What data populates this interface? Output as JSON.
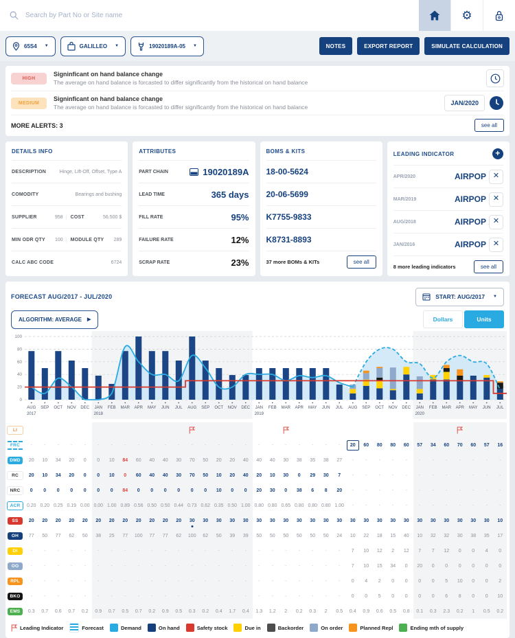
{
  "topbar": {
    "search_placeholder": "Search by Part No or Site name"
  },
  "toolbar": {
    "site": "65S4",
    "vendor": "GALILLEO",
    "part": "19020189A-05",
    "notes": "NOTES",
    "export_report": "EXPORT REPORT",
    "simulate": "SIMULATE CALCULATION"
  },
  "alerts": {
    "items": [
      {
        "severity": "HIGH",
        "title": "Signinficant on hand balance change",
        "description": "The average on hand balance is forcasted to differ significantly from the historical on hand balance"
      },
      {
        "severity": "MEDIUM",
        "title": "Signinficant on hand balance change",
        "description": "The average on hand balance is forcasted to differ significantly from the historical on hand balance",
        "date": "JAN/2020"
      }
    ],
    "more": "MORE ALERTS: 3",
    "see_all": "see all"
  },
  "details_info": {
    "title": "DETAILS INFO",
    "description_label": "DESCRIPTION",
    "description": "Hinge, Lift-Off, Offset, Type A",
    "comodity_label": "COMODITY",
    "comodity": "Bearings and bushing",
    "supplier_label": "SUPPLIER",
    "supplier": "958",
    "cost_label": "COST",
    "cost": "56.500 $",
    "min_odr_label": "MIN ODR QTY",
    "min_odr": "100",
    "module_label": "MODULE QTY",
    "module": "289",
    "abc_label": "CALC ABC CODE",
    "abc": "6724"
  },
  "attributes": {
    "title": "ATTRIBUTES",
    "rows": [
      {
        "label": "PART CHAIN",
        "value": "19020189A",
        "style": "blue",
        "icon": "part-chain"
      },
      {
        "label": "LEAD TIME",
        "value": "365 days",
        "style": "blue"
      },
      {
        "label": "FILL RATE",
        "value": "95%",
        "style": "blue"
      },
      {
        "label": "FAILURE RATE",
        "value": "12%",
        "style": "dark"
      },
      {
        "label": "SCRAP RATE",
        "value": "23%",
        "style": "dark"
      }
    ]
  },
  "boms": {
    "title": "BOMS & KITS",
    "items": [
      "18-00-5624",
      "20-06-5699",
      "K7755-9833",
      "K8731-8893"
    ],
    "more": "37 more BOMs & KITs",
    "see_all": "see all"
  },
  "leading": {
    "title": "LEADING INDICATOR",
    "items": [
      {
        "date": "APR/2020",
        "name": "AIRPOP"
      },
      {
        "date": "MAR/2019",
        "name": "AIRPOP"
      },
      {
        "date": "AUG/2018",
        "name": "AIRPOP"
      },
      {
        "date": "JAN/2016",
        "name": "AIRPOP"
      }
    ],
    "more": "8 more leading indicators",
    "see_all": "see all"
  },
  "forecast": {
    "title": "FORECAST AUG/2017 - JUL/2020",
    "start": "START: AUG/2017",
    "algorithm": "ALGORITHM: AVERAGE",
    "dollars": "Dollars",
    "units": "Units"
  },
  "chart_data": {
    "type": "combo bar+line+area+step",
    "x": [
      "AUG",
      "SEP",
      "OCT",
      "NOV",
      "DEC",
      "JAN",
      "FEB",
      "MAR",
      "APR",
      "MAY",
      "JUN",
      "JUL",
      "AUG",
      "SEP",
      "OCT",
      "NOV",
      "DEC",
      "JAN",
      "FEB",
      "MAR",
      "APR",
      "MAY",
      "JUN",
      "JUL",
      "AUG",
      "SEP",
      "OCT",
      "NOV",
      "DEC",
      "JAN",
      "FEB",
      "MAR",
      "APR",
      "MAY",
      "JUN",
      "JUL"
    ],
    "year_labels": {
      "0": "2017",
      "5": "2018",
      "17": "2019",
      "29": "2020"
    },
    "ylim": [
      0,
      100
    ],
    "yticks": [
      0,
      20,
      40,
      60,
      80,
      100
    ],
    "year_bands": [
      [
        5,
        16
      ],
      [
        29,
        35
      ]
    ],
    "forecast_start_index": 24,
    "colors": {
      "demand": "#29abe2",
      "area": "#cfe8f7",
      "on_hand": "#1b4584",
      "safety": "#d7392f",
      "due_in": "#ffd105",
      "backorder": "#1a1a1a",
      "on_order": "#8fa9cb",
      "planned_repl": "#f7941d"
    },
    "series": [
      {
        "name": "Demand",
        "type": "line",
        "values": [
          20,
          10,
          34,
          20,
          0,
          0,
          10,
          84,
          60,
          40,
          40,
          30,
          70,
          50,
          20,
          20,
          40,
          40,
          40,
          30,
          38,
          35,
          38,
          27
        ]
      },
      {
        "name": "Forecast",
        "type": "dashed-line",
        "start": 24,
        "values": [
          20,
          60,
          80,
          80,
          60,
          57,
          34,
          60,
          70,
          60,
          57,
          16
        ]
      },
      {
        "name": "On hand",
        "type": "bar",
        "values": [
          77,
          50,
          77,
          62,
          50,
          38,
          25,
          77,
          100,
          77,
          77,
          62,
          100,
          62,
          50,
          39,
          39,
          50,
          50,
          50,
          50,
          50,
          50,
          24,
          10,
          22,
          18,
          15,
          40,
          10,
          32,
          32,
          30,
          38,
          35,
          17
        ]
      },
      {
        "name": "Due in",
        "type": "bar-stack",
        "start": 24,
        "values": [
          7,
          10,
          12,
          2,
          12,
          7,
          7,
          12,
          0,
          0,
          4,
          0
        ]
      },
      {
        "name": "Backorder",
        "type": "bar-stack",
        "start": 24,
        "values": [
          0,
          0,
          5,
          0,
          0,
          0,
          0,
          6,
          8,
          0,
          0,
          10
        ]
      },
      {
        "name": "On order",
        "type": "bar-stack",
        "start": 24,
        "values": [
          7,
          10,
          15,
          34,
          0,
          20,
          0,
          0,
          0,
          0,
          0,
          0
        ]
      },
      {
        "name": "Planned Repl",
        "type": "bar-stack",
        "start": 24,
        "values": [
          0,
          4,
          2,
          0,
          0,
          0,
          0,
          5,
          10,
          0,
          0,
          2
        ]
      },
      {
        "name": "Safety stock",
        "type": "step-line",
        "values": [
          20,
          20,
          20,
          20,
          20,
          20,
          20,
          20,
          20,
          20,
          20,
          20,
          30,
          30,
          30,
          30,
          30,
          30,
          30,
          30,
          30,
          30,
          30,
          30,
          30,
          30,
          30,
          30,
          30,
          30,
          30,
          30,
          30,
          30,
          30,
          10
        ]
      }
    ]
  },
  "table": {
    "rows": [
      {
        "key": "li",
        "label": "LI",
        "num_style": "gray",
        "flags": [
          12,
          19,
          32
        ],
        "values": [
          "",
          "",
          "",
          "",
          "",
          "",
          "",
          "",
          "",
          "",
          "",
          "",
          "",
          "",
          "",
          "",
          "",
          "",
          "",
          "",
          "",
          "",
          "",
          "",
          "",
          "",
          "",
          "",
          "",
          "",
          "",
          "",
          "",
          "",
          "",
          ""
        ]
      },
      {
        "key": "frc",
        "label": "FRC",
        "num_style": "blue",
        "boxed": 24,
        "values": [
          "-",
          "-",
          "-",
          "-",
          "-",
          "-",
          "-",
          "-",
          "-",
          "-",
          "-",
          "-",
          "-",
          "-",
          "-",
          "-",
          "-",
          "-",
          "-",
          "-",
          "-",
          "-",
          "-",
          "-",
          20,
          60,
          80,
          80,
          60,
          57,
          34,
          60,
          70,
          60,
          57,
          16
        ]
      },
      {
        "key": "dmd",
        "label": "DMD",
        "num_style": "gray",
        "red": [
          7
        ],
        "values": [
          20,
          10,
          34,
          20,
          0,
          0,
          10,
          84,
          60,
          40,
          40,
          30,
          70,
          50,
          20,
          20,
          40,
          40,
          40,
          30,
          38,
          35,
          38,
          27,
          "-",
          "-",
          "-",
          "-",
          "-",
          "-",
          "-",
          "-",
          "-",
          "-",
          "-",
          "-"
        ]
      },
      {
        "key": "rc",
        "label": "RC",
        "num_style": "blue",
        "red": [
          7
        ],
        "values": [
          20,
          10,
          34,
          20,
          0,
          0,
          10,
          0,
          60,
          40,
          40,
          30,
          70,
          50,
          10,
          20,
          40,
          20,
          10,
          30,
          0,
          29,
          30,
          7,
          "-",
          "-",
          "-",
          "-",
          "-",
          "-",
          "-",
          "-",
          "-",
          "-",
          "-",
          "-"
        ]
      },
      {
        "key": "nrc",
        "label": "NRC",
        "num_style": "blue",
        "red": [
          7
        ],
        "values": [
          0,
          0,
          0,
          0,
          0,
          0,
          0,
          84,
          0,
          0,
          0,
          0,
          0,
          0,
          10,
          0,
          0,
          20,
          30,
          0,
          38,
          6,
          8,
          20,
          "-",
          "-",
          "-",
          "-",
          "-",
          "-",
          "-",
          "-",
          "-",
          "-",
          "-",
          "-"
        ]
      },
      {
        "key": "acr",
        "label": "ACR",
        "num_style": "gray",
        "values": [
          "0.20",
          "0.20",
          "0.25",
          "0.19",
          "0.00",
          "0.00",
          "1.00",
          "0.89",
          "0.56",
          "0.50",
          "0.50",
          "0.44",
          "0.73",
          "0.62",
          "0.35",
          "0.50",
          "1.00",
          "0.80",
          "0.80",
          "0.65",
          "0.80",
          "0.80",
          "0.80",
          "1.00",
          "-",
          "-",
          "-",
          "-",
          "-",
          "-",
          "-",
          "-",
          "-",
          "-",
          "-",
          "-"
        ]
      },
      {
        "key": "ss",
        "label": "SS",
        "num_style": "blue",
        "dot": 12,
        "values": [
          20,
          20,
          20,
          20,
          20,
          20,
          20,
          20,
          20,
          20,
          20,
          20,
          30,
          30,
          30,
          30,
          30,
          30,
          30,
          30,
          30,
          30,
          30,
          30,
          30,
          30,
          30,
          30,
          30,
          30,
          30,
          30,
          30,
          30,
          30,
          10
        ]
      },
      {
        "key": "oh",
        "label": "OH",
        "num_style": "gray",
        "values": [
          77,
          50,
          77,
          62,
          50,
          38,
          25,
          77,
          100,
          77,
          77,
          62,
          100,
          62,
          50,
          39,
          39,
          50,
          50,
          50,
          50,
          50,
          50,
          24,
          10,
          22,
          18,
          15,
          40,
          10,
          32,
          32,
          30,
          38,
          35,
          17
        ]
      },
      {
        "key": "di",
        "label": "DI",
        "num_style": "gray",
        "values": [
          "-",
          "-",
          "-",
          "-",
          "-",
          "-",
          "-",
          "-",
          "-",
          "-",
          "-",
          "-",
          "-",
          "-",
          "-",
          "-",
          "-",
          "-",
          "-",
          "-",
          "-",
          "-",
          "-",
          "-",
          7,
          10,
          12,
          2,
          12,
          7,
          7,
          12,
          0,
          0,
          4,
          0
        ]
      },
      {
        "key": "oo",
        "label": "OO",
        "num_style": "gray",
        "values": [
          "-",
          "-",
          "-",
          "-",
          "-",
          "-",
          "-",
          "-",
          "-",
          "-",
          "-",
          "-",
          "-",
          "-",
          "-",
          "-",
          "-",
          "-",
          "-",
          "-",
          "-",
          "-",
          "-",
          "-",
          7,
          10,
          15,
          34,
          0,
          20,
          0,
          0,
          0,
          0,
          0,
          0
        ]
      },
      {
        "key": "rpl",
        "label": "RPL",
        "num_style": "gray",
        "values": [
          "-",
          "-",
          "-",
          "-",
          "-",
          "-",
          "-",
          "-",
          "-",
          "-",
          "-",
          "-",
          "-",
          "-",
          "-",
          "-",
          "-",
          "-",
          "-",
          "-",
          "-",
          "-",
          "-",
          "-",
          0,
          4,
          2,
          0,
          0,
          0,
          0,
          5,
          10,
          0,
          0,
          2
        ]
      },
      {
        "key": "bko",
        "label": "BKO",
        "num_style": "gray",
        "values": [
          "-",
          "-",
          "-",
          "-",
          "-",
          "-",
          "-",
          "-",
          "-",
          "-",
          "-",
          "-",
          "-",
          "-",
          "-",
          "-",
          "-",
          "-",
          "-",
          "-",
          "-",
          "-",
          "-",
          "-",
          0,
          0,
          5,
          0,
          0,
          0,
          0,
          6,
          8,
          0,
          0,
          10
        ]
      },
      {
        "key": "ems",
        "label": "EMS",
        "num_style": "gray",
        "values": [
          0.3,
          0.7,
          0.6,
          0.7,
          0.2,
          0.9,
          0.7,
          0.5,
          0.7,
          0.2,
          0.9,
          0.5,
          0.3,
          0.2,
          0.4,
          1.7,
          0.4,
          1.3,
          1.2,
          2,
          0.2,
          0.3,
          2,
          0.5,
          0.4,
          0.9,
          0.6,
          0.5,
          0.8,
          0.1,
          0.3,
          2.3,
          0.2,
          1,
          0.5,
          0.2
        ]
      }
    ]
  },
  "legend": {
    "items": [
      {
        "label": "Leading Indicator",
        "swatch": "flag"
      },
      {
        "label": "Forecast",
        "swatch": "stripes"
      },
      {
        "label": "Demand",
        "swatch": "#29abe2"
      },
      {
        "label": "On hand",
        "swatch": "#16407c"
      },
      {
        "label": "Safety stock",
        "swatch": "#d7392f"
      },
      {
        "label": "Due in",
        "swatch": "#ffd105"
      },
      {
        "label": "Backorder",
        "swatch": "#4d4d4d"
      },
      {
        "label": "On order",
        "swatch": "#8fa9cb"
      },
      {
        "label": "Planned Repl",
        "swatch": "#f7941d"
      },
      {
        "label": "Ending mth of supply",
        "swatch": "#4caf50"
      }
    ]
  }
}
